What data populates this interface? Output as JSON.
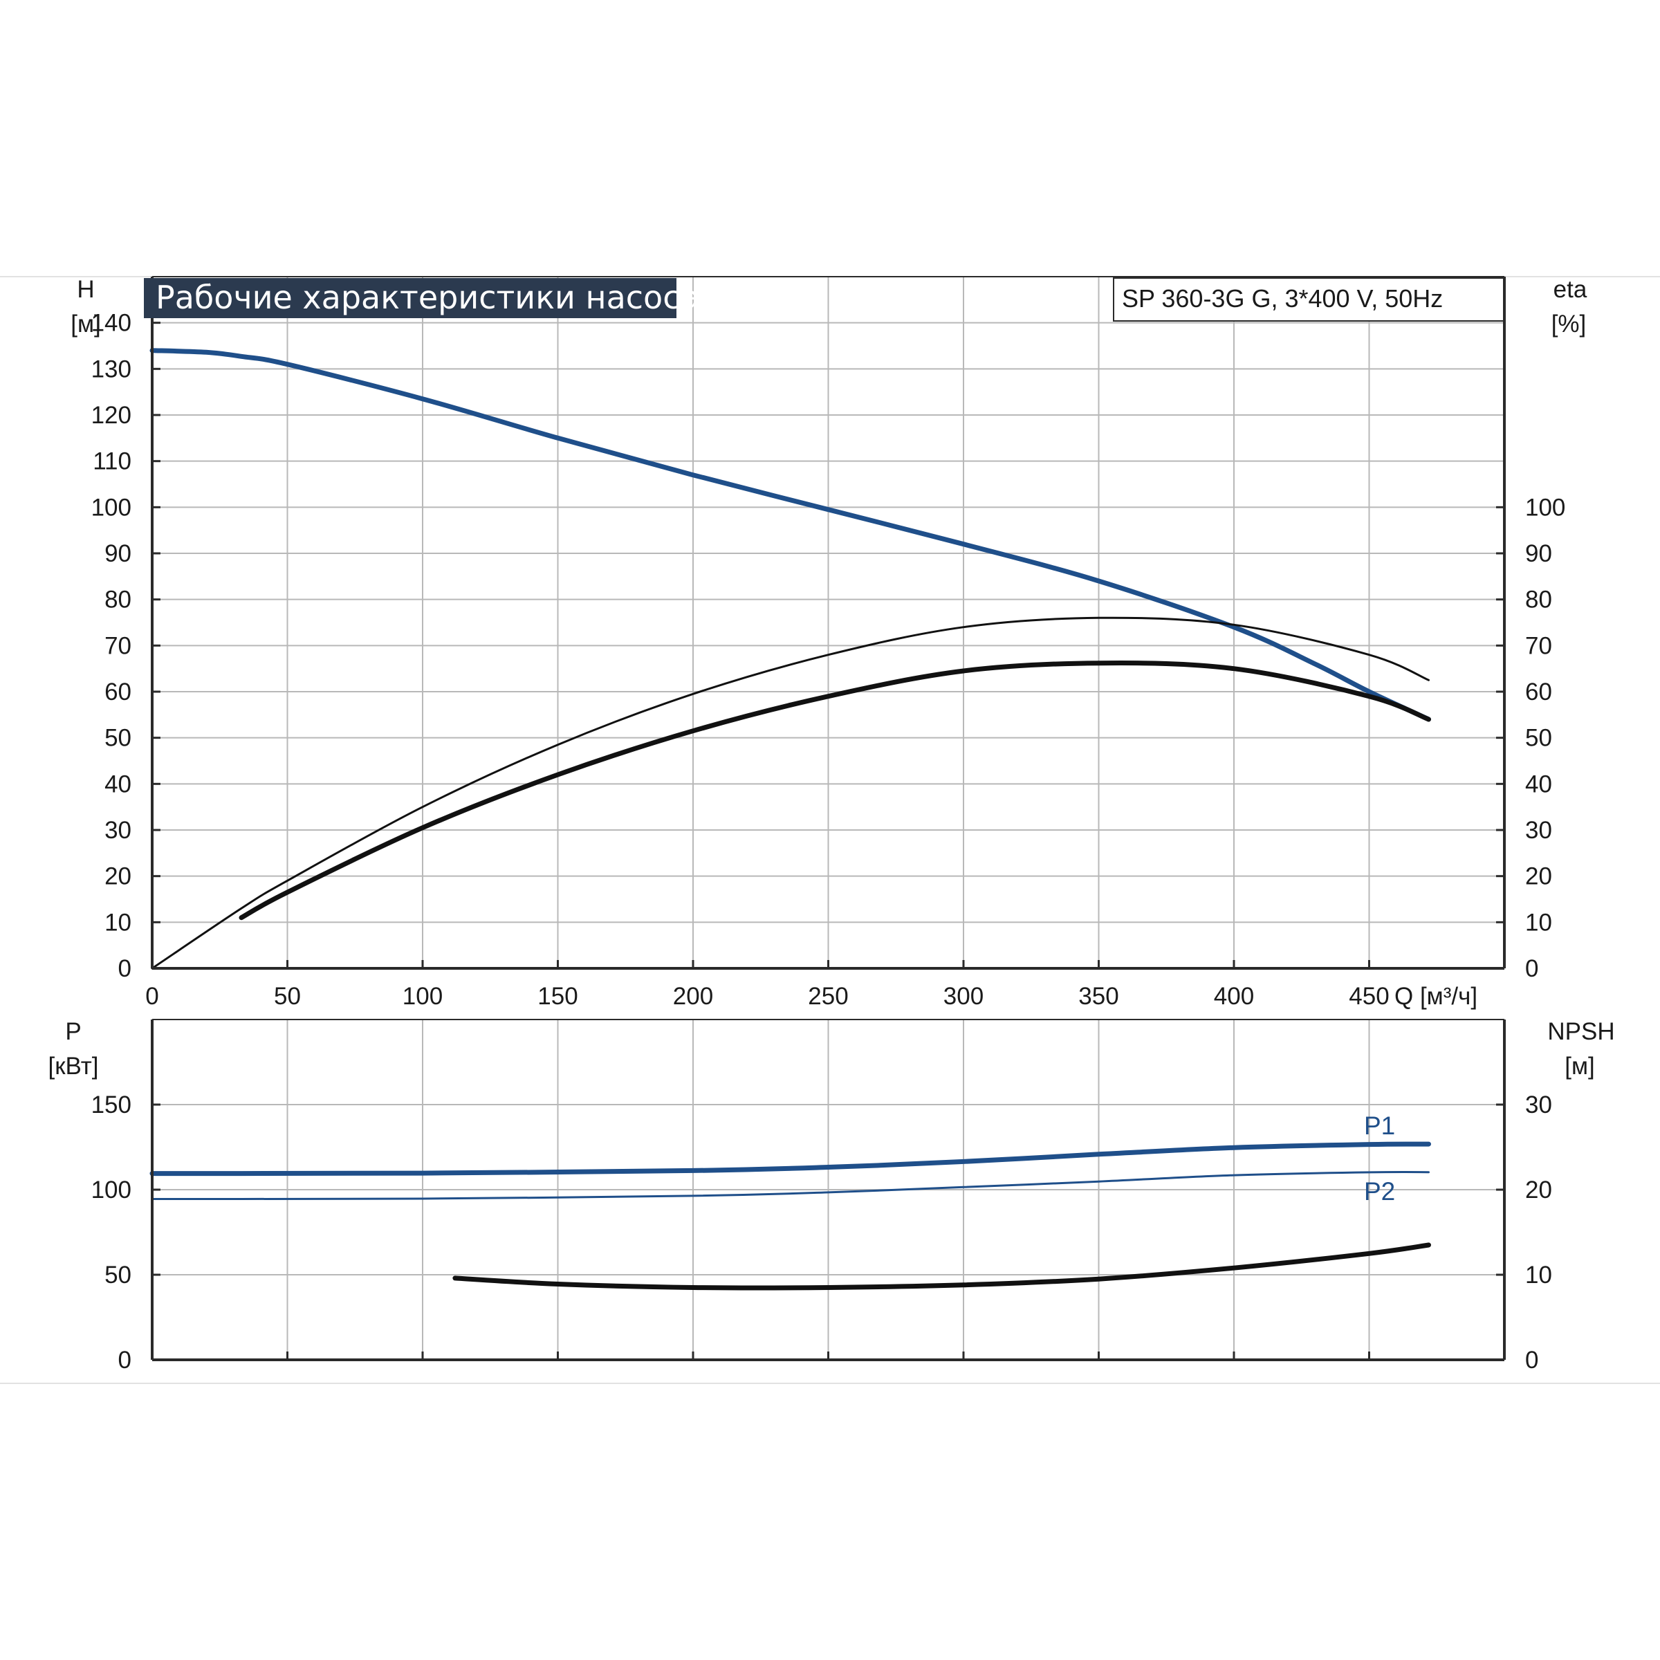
{
  "chart_title": "Рабочие характеристики насоса",
  "model_label": "SP 360-3G G, 3*400 V, 50Hz",
  "colors": {
    "grid": "#b8b8b8",
    "axis": "#2a2a2a",
    "title_bg": "#2b3a4f",
    "blue": "#1f4f8a",
    "black": "#111111"
  },
  "chart_data": [
    {
      "type": "line",
      "name": "top",
      "xlabel": "Q [м³/ч]",
      "xlim": [
        0,
        500
      ],
      "xticks": [
        0,
        50,
        100,
        150,
        200,
        250,
        300,
        350,
        400,
        450
      ],
      "left_axis": {
        "label": "H",
        "unit": "[м]",
        "ticks": [
          0,
          10,
          20,
          30,
          40,
          50,
          60,
          70,
          80,
          90,
          100,
          110,
          120,
          130,
          140
        ],
        "ylim": [
          0,
          150
        ]
      },
      "right_axis": {
        "label": "eta",
        "unit": "[%]",
        "ticks": [
          0,
          10,
          20,
          30,
          40,
          50,
          60,
          70,
          80,
          90,
          100
        ],
        "ylim": [
          0,
          150
        ]
      },
      "grid": true,
      "series": [
        {
          "key": "H",
          "axis": "left",
          "color": "blue",
          "style": "thick",
          "x": [
            0,
            20,
            33,
            50,
            100,
            150,
            200,
            250,
            300,
            350,
            400,
            430,
            450,
            472
          ],
          "y": [
            134,
            133.6,
            132.7,
            131,
            123.5,
            115,
            107,
            99.5,
            92,
            84,
            74,
            66,
            60,
            54
          ]
        },
        {
          "key": "eta",
          "axis": "right",
          "color": "black",
          "style": "thin",
          "x": [
            0,
            33,
            50,
            100,
            150,
            200,
            250,
            300,
            350,
            400,
            450,
            472
          ],
          "y": [
            0,
            13,
            19,
            35,
            48.5,
            59.5,
            68,
            74,
            76,
            74.5,
            68,
            62.5
          ]
        },
        {
          "key": "eta_total",
          "axis": "right",
          "color": "black",
          "style": "thick",
          "x": [
            33,
            50,
            100,
            150,
            200,
            250,
            300,
            350,
            400,
            450,
            472
          ],
          "y": [
            11,
            16.5,
            30.5,
            42,
            51.5,
            59,
            64.5,
            66.2,
            65,
            59,
            54
          ]
        }
      ]
    },
    {
      "type": "line",
      "name": "bottom",
      "xlim": [
        0,
        500
      ],
      "left_axis": {
        "label": "P",
        "unit": "[кВт]",
        "ticks": [
          0,
          50,
          100,
          150
        ],
        "ylim": [
          0,
          200
        ]
      },
      "right_axis": {
        "label": "NPSH",
        "unit": "[м]",
        "ticks": [
          0,
          10,
          20,
          30
        ],
        "ylim": [
          0,
          40
        ]
      },
      "grid": true,
      "series": [
        {
          "key": "P1",
          "name": "P1",
          "axis": "left",
          "color": "blue",
          "style": "thick",
          "x": [
            0,
            33,
            100,
            200,
            250,
            300,
            350,
            400,
            450,
            472
          ],
          "y": [
            109.5,
            109.5,
            109.7,
            111.2,
            113.2,
            116.5,
            120.8,
            124.7,
            126.6,
            126.8
          ]
        },
        {
          "key": "P2",
          "name": "P2",
          "axis": "left",
          "color": "blue",
          "style": "thin",
          "x": [
            0,
            33,
            100,
            200,
            250,
            300,
            350,
            400,
            450,
            472
          ],
          "y": [
            94.5,
            94.5,
            94.7,
            96.4,
            98.4,
            101.5,
            104.8,
            108.5,
            110.2,
            110.3
          ]
        },
        {
          "key": "NPSH",
          "axis": "right",
          "color": "black",
          "style": "thick",
          "x": [
            112,
            150,
            200,
            250,
            300,
            350,
            400,
            450,
            472
          ],
          "y": [
            9.6,
            8.9,
            8.5,
            8.5,
            8.8,
            9.5,
            10.8,
            12.5,
            13.5
          ]
        }
      ]
    }
  ]
}
